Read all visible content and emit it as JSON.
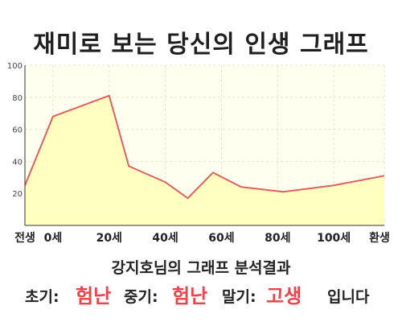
{
  "title": "재미로 보는 당신의 인생 그래프",
  "chart_data": {
    "type": "area",
    "x": [
      "전생",
      "0세",
      "20세",
      "40세",
      "60세",
      "80세",
      "100세",
      "환생"
    ],
    "points": [
      {
        "x": -10,
        "y": 25
      },
      {
        "x": 0,
        "y": 68
      },
      {
        "x": 20,
        "y": 81
      },
      {
        "x": 27,
        "y": 37
      },
      {
        "x": 40,
        "y": 27
      },
      {
        "x": 48,
        "y": 17
      },
      {
        "x": 57,
        "y": 33
      },
      {
        "x": 67,
        "y": 24
      },
      {
        "x": 82,
        "y": 21
      },
      {
        "x": 100,
        "y": 25
      },
      {
        "x": 118,
        "y": 31
      }
    ],
    "xlim": [
      -10,
      118
    ],
    "ylim": [
      0,
      100
    ],
    "yticks": [
      20,
      40,
      60,
      80,
      100
    ],
    "xticks": [
      {
        "x": -10,
        "label": "전생"
      },
      {
        "x": 0,
        "label": "0세"
      },
      {
        "x": 20,
        "label": "20세"
      },
      {
        "x": 40,
        "label": "40세"
      },
      {
        "x": 60,
        "label": "60세"
      },
      {
        "x": 80,
        "label": "80세"
      },
      {
        "x": 100,
        "label": "100세"
      },
      {
        "x": 118,
        "label": "환생"
      }
    ],
    "grid": true,
    "colors": {
      "line": "#e06060",
      "fill": "#ffffc0",
      "plot_bg": "#fffff0",
      "grid": "#f0e0c8",
      "axis": "#333333"
    }
  },
  "result": {
    "title": "강지호님의 그래프 분석결과",
    "early_label": "초기:",
    "early_value": "험난",
    "middle_label": "중기:",
    "middle_value": "험난",
    "late_label": "말기:",
    "late_value": "고생",
    "suffix": "입니다"
  }
}
